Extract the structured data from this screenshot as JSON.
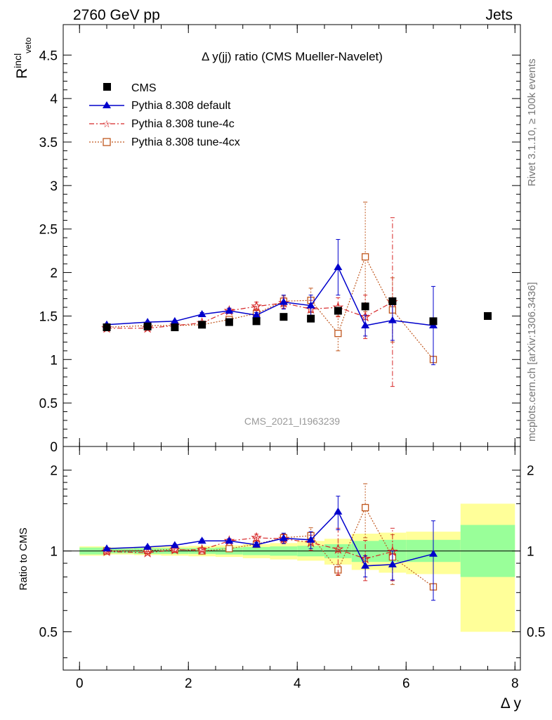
{
  "header": {
    "left": "2760 GeV pp",
    "right": "Jets"
  },
  "side_texts": {
    "top": "Rivet 3.1.10, ≥ 100k events",
    "bottom": "mcplots.cern.ch [arXiv:1306.3436]"
  },
  "colors": {
    "cms": "#000000",
    "default": "#0000cc",
    "tune4c": "#d62728",
    "tune4cx": "#c0571e",
    "band_inner": "#99ff99",
    "band_outer": "#ffff99"
  },
  "chart_data": [
    {
      "type": "scatter",
      "title": "Δ y(jj) ratio (CMS Mueller-Navelet)",
      "ylabel_main": "R",
      "ylabel_sup": "incl",
      "ylabel_sub": "veto",
      "watermark": "CMS_2021_I1963239",
      "xlim": [
        -0.3,
        8.1
      ],
      "ylim": [
        0,
        4.85
      ],
      "yticks": [
        "0",
        "0.5",
        "1",
        "1.5",
        "2",
        "2.5",
        "3",
        "3.5",
        "4",
        "4.5"
      ],
      "ytick_values": [
        0,
        0.5,
        1,
        1.5,
        2,
        2.5,
        3,
        3.5,
        4,
        4.5
      ],
      "legend_position": "top-left",
      "series": [
        {
          "name": "CMS",
          "marker": "square-filled",
          "line": "none",
          "x": [
            0.5,
            1.25,
            1.75,
            2.25,
            2.75,
            3.25,
            3.75,
            4.25,
            4.75,
            5.25,
            5.75,
            6.5,
            7.5
          ],
          "y": [
            1.37,
            1.38,
            1.37,
            1.4,
            1.43,
            1.44,
            1.49,
            1.47,
            1.56,
            1.61,
            1.67,
            1.44,
            1.5
          ]
        },
        {
          "name": "Pythia 8.308 default",
          "marker": "triangle-filled",
          "line": "solid",
          "x": [
            0.5,
            1.25,
            1.75,
            2.25,
            2.75,
            3.25,
            3.75,
            4.25,
            4.75,
            5.25,
            5.75,
            6.5
          ],
          "y": [
            1.4,
            1.43,
            1.44,
            1.52,
            1.56,
            1.51,
            1.66,
            1.62,
            2.06,
            1.39,
            1.45,
            1.39
          ],
          "err": [
            0.01,
            0.01,
            0.01,
            0.02,
            0.03,
            0.03,
            0.08,
            0.12,
            0.32,
            0.12,
            0.23,
            0.45
          ]
        },
        {
          "name": "Pythia 8.308 tune-4c",
          "marker": "star-open",
          "line": "dashdot",
          "x": [
            0.5,
            1.25,
            1.75,
            2.25,
            2.75,
            3.25,
            3.75,
            4.25,
            4.75,
            5.25,
            5.75
          ],
          "y": [
            1.36,
            1.36,
            1.39,
            1.42,
            1.56,
            1.61,
            1.65,
            1.58,
            1.6,
            1.49,
            1.66
          ],
          "err": [
            0.01,
            0.01,
            0.02,
            0.02,
            0.03,
            0.05,
            0.06,
            0.1,
            0.11,
            0.25,
            0.97
          ]
        },
        {
          "name": "Pythia 8.308 tune-4cx",
          "marker": "square-open",
          "line": "dotted",
          "x": [
            0.5,
            1.25,
            1.75,
            2.25,
            2.75,
            3.25,
            3.75,
            4.25,
            4.75,
            5.25,
            5.75,
            6.5
          ],
          "y": [
            1.37,
            1.39,
            1.39,
            1.4,
            1.46,
            1.53,
            1.67,
            1.68,
            1.3,
            2.18,
            1.57,
            1.0
          ],
          "err": [
            0.01,
            0.01,
            0.01,
            0.02,
            0.03,
            0.04,
            0.06,
            0.14,
            0.2,
            0.63,
            0.37,
            0.0
          ]
        }
      ]
    },
    {
      "type": "scatter",
      "ylabel": "Ratio to CMS",
      "xlabel": "Δ y",
      "xlim": [
        -0.3,
        8.1
      ],
      "ylim": [
        0.36,
        2.45
      ],
      "xticks": [
        "0",
        "2",
        "4",
        "6",
        "8"
      ],
      "xtick_values": [
        0,
        2,
        4,
        6,
        8
      ],
      "yticks_left": [
        "0.5",
        "1",
        "2"
      ],
      "yticks_right": [
        "0.5",
        "1",
        "2"
      ],
      "ytick_values": [
        0.5,
        1,
        2
      ],
      "bands": [
        {
          "x0": 0.0,
          "x1": 0.5,
          "inner": [
            0.97,
            1.03
          ],
          "outer": [
            0.96,
            1.04
          ]
        },
        {
          "x0": 0.5,
          "x1": 1.0,
          "inner": [
            0.98,
            1.02
          ],
          "outer": [
            0.97,
            1.03
          ]
        },
        {
          "x0": 1.0,
          "x1": 1.5,
          "inner": [
            0.975,
            1.025
          ],
          "outer": [
            0.965,
            1.035
          ]
        },
        {
          "x0": 1.5,
          "x1": 2.0,
          "inner": [
            0.975,
            1.025
          ],
          "outer": [
            0.96,
            1.04
          ]
        },
        {
          "x0": 2.0,
          "x1": 2.5,
          "inner": [
            0.975,
            1.025
          ],
          "outer": [
            0.955,
            1.045
          ]
        },
        {
          "x0": 2.5,
          "x1": 3.0,
          "inner": [
            0.97,
            1.03
          ],
          "outer": [
            0.95,
            1.05
          ]
        },
        {
          "x0": 3.0,
          "x1": 3.5,
          "inner": [
            0.965,
            1.035
          ],
          "outer": [
            0.94,
            1.06
          ]
        },
        {
          "x0": 3.5,
          "x1": 4.0,
          "inner": [
            0.96,
            1.04
          ],
          "outer": [
            0.93,
            1.07
          ]
        },
        {
          "x0": 4.0,
          "x1": 4.5,
          "inner": [
            0.955,
            1.045
          ],
          "outer": [
            0.92,
            1.09
          ]
        },
        {
          "x0": 4.5,
          "x1": 5.0,
          "inner": [
            0.94,
            1.06
          ],
          "outer": [
            0.89,
            1.11
          ]
        },
        {
          "x0": 5.0,
          "x1": 5.5,
          "inner": [
            0.91,
            1.09
          ],
          "outer": [
            0.85,
            1.16
          ]
        },
        {
          "x0": 5.5,
          "x1": 6.0,
          "inner": [
            0.91,
            1.1
          ],
          "outer": [
            0.83,
            1.17
          ]
        },
        {
          "x0": 6.0,
          "x1": 7.0,
          "inner": [
            0.91,
            1.1
          ],
          "outer": [
            0.82,
            1.18
          ]
        },
        {
          "x0": 7.0,
          "x1": 8.0,
          "inner": [
            0.8,
            1.25
          ],
          "outer": [
            0.5,
            1.5
          ]
        }
      ],
      "series": [
        {
          "name": "Pythia 8.308 default",
          "marker": "triangle-filled",
          "line": "solid",
          "x": [
            0.5,
            1.25,
            1.75,
            2.25,
            2.75,
            3.25,
            3.75,
            4.25,
            4.75,
            5.25,
            5.75,
            6.5
          ],
          "y": [
            1.02,
            1.035,
            1.05,
            1.09,
            1.09,
            1.055,
            1.115,
            1.1,
            1.4,
            0.88,
            0.89,
            0.975
          ],
          "err": [
            0.01,
            0.01,
            0.01,
            0.015,
            0.02,
            0.02,
            0.05,
            0.08,
            0.2,
            0.08,
            0.11,
            0.32
          ]
        },
        {
          "name": "Pythia 8.308 tune-4c",
          "marker": "star-open",
          "line": "dashdot",
          "x": [
            0.5,
            1.25,
            1.75,
            2.25,
            2.75,
            3.25,
            3.75,
            4.25,
            4.75,
            5.25,
            5.75
          ],
          "y": [
            0.995,
            0.985,
            1.01,
            1.01,
            1.09,
            1.12,
            1.11,
            1.075,
            1.015,
            0.935,
            0.995
          ],
          "err": [
            0.01,
            0.01,
            0.015,
            0.015,
            0.02,
            0.035,
            0.04,
            0.07,
            0.2,
            0.16,
            0.22
          ]
        },
        {
          "name": "Pythia 8.308 tune-4cx",
          "marker": "square-open",
          "line": "dotted",
          "x": [
            0.5,
            1.25,
            1.75,
            2.25,
            2.75,
            3.25,
            3.75,
            4.25,
            4.75,
            5.25,
            5.75,
            6.5
          ],
          "y": [
            1.0,
            1.005,
            1.015,
            1.0,
            1.02,
            1.06,
            1.12,
            1.14,
            0.85,
            1.45,
            0.95,
            0.735
          ],
          "err": [
            0.01,
            0.01,
            0.01,
            0.015,
            0.02,
            0.03,
            0.04,
            0.08,
            0.04,
            0.33,
            0.2,
            0.0
          ]
        }
      ]
    }
  ]
}
